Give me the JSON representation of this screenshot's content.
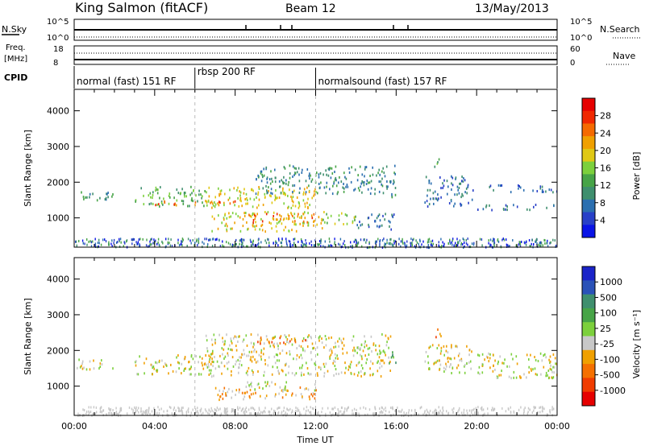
{
  "header": {
    "station": "King Salmon (fitACF)",
    "beam": "Beam 12",
    "date": "13/May/2013"
  },
  "top_panels": {
    "nsky_label": "N.Sky",
    "nsearch_label": "N.Search",
    "freq_label_line1": "Freq.",
    "freq_label_line2": "[MHz]",
    "nave_label": "Nave",
    "cpid_label": "CPID",
    "noise_ticks_left": [
      "10^5",
      "10^0"
    ],
    "noise_ticks_right": [
      "10^5",
      "10^0"
    ],
    "freq_ticks_left": [
      "18",
      "8"
    ],
    "nave_ticks_right": [
      "60",
      "0"
    ]
  },
  "cpid_segments": [
    {
      "label": "normal (fast) 151 RF",
      "start_h": 0,
      "end_h": 6
    },
    {
      "label": "rbsp 200 RF",
      "start_h": 6,
      "end_h": 12
    },
    {
      "label": "normalsound (fast) 157 RF",
      "start_h": 12,
      "end_h": 24
    }
  ],
  "colors": {
    "power": [
      "#0a14e6",
      "#2840c8",
      "#2b6fb0",
      "#3f8f6e",
      "#47a447",
      "#7cd03c",
      "#e0c814",
      "#f0a000",
      "#f56a00",
      "#f02800",
      "#e60000"
    ],
    "velocity": [
      "#1a23c8",
      "#2a52b8",
      "#3f8f6e",
      "#47a447",
      "#7cd03c",
      "#c8c8c8",
      "#f0a000",
      "#f57000",
      "#f03c00",
      "#e60000"
    ]
  },
  "chart_data": [
    {
      "type": "heatmap",
      "name": "power",
      "xlabel": "",
      "ylabel": "Slant Range [km]",
      "xlim": [
        0,
        24
      ],
      "ylim": [
        180,
        4600
      ],
      "yticks": [
        1000,
        2000,
        3000,
        4000
      ],
      "colorbar_label": "Power [dB]",
      "colorbar_ticks": [
        "4",
        "8",
        "12",
        "16",
        "20",
        "24",
        "28"
      ],
      "echo_regions": [
        {
          "t0": 0.0,
          "t1": 1.9,
          "r0": 1500,
          "r1": 1780,
          "level": 3
        },
        {
          "t0": 3.0,
          "t1": 6.5,
          "r0": 1350,
          "r1": 1900,
          "level": 4
        },
        {
          "t0": 4.0,
          "t1": 8.0,
          "r0": 1380,
          "r1": 1520,
          "level": 8
        },
        {
          "t0": 6.5,
          "t1": 12.0,
          "r0": 1300,
          "r1": 1900,
          "level": 6
        },
        {
          "t0": 9.0,
          "t1": 11.0,
          "r0": 1600,
          "r1": 1750,
          "level": 5
        },
        {
          "t0": 9.0,
          "t1": 15.7,
          "r0": 1700,
          "r1": 2500,
          "level": 3
        },
        {
          "t0": 6.8,
          "t1": 12.3,
          "r0": 650,
          "r1": 1200,
          "level": 6
        },
        {
          "t0": 8.5,
          "t1": 12.0,
          "r0": 900,
          "r1": 1150,
          "level": 8
        },
        {
          "t0": 12.3,
          "t1": 14.0,
          "r0": 850,
          "r1": 1200,
          "level": 5
        },
        {
          "t0": 14.0,
          "t1": 16.0,
          "r0": 700,
          "r1": 1150,
          "level": 2
        },
        {
          "t0": 15.5,
          "t1": 16.0,
          "r0": 1600,
          "r1": 2500,
          "level": 3
        },
        {
          "t0": 17.4,
          "t1": 19.8,
          "r0": 1350,
          "r1": 2200,
          "level": 2
        },
        {
          "t0": 17.8,
          "t1": 18.2,
          "r0": 2400,
          "r1": 2700,
          "level": 4
        },
        {
          "t0": 20.0,
          "t1": 24.0,
          "r0": 1250,
          "r1": 1400,
          "level": 2
        },
        {
          "t0": 20.5,
          "t1": 24.0,
          "r0": 1750,
          "r1": 1950,
          "level": 2
        }
      ]
    },
    {
      "type": "heatmap",
      "name": "velocity",
      "xlabel": "Time UT",
      "ylabel": "Slant Range [km]",
      "xlim": [
        0,
        24
      ],
      "ylim": [
        180,
        4600
      ],
      "yticks": [
        1000,
        2000,
        3000,
        4000
      ],
      "xticks": [
        "00:00",
        "04:00",
        "08:00",
        "12:00",
        "16:00",
        "20:00",
        "00:00"
      ],
      "colorbar_label": "Velocity [m s⁻¹]",
      "colorbar_ticks": [
        "-1000",
        "-500",
        "-100",
        "-25",
        "25",
        "100",
        "500",
        "1000"
      ],
      "echo_regions": [
        {
          "t0": 0.0,
          "t1": 1.9,
          "r0": 1500,
          "r1": 1780,
          "level": 5
        },
        {
          "t0": 3.0,
          "t1": 6.5,
          "r0": 1350,
          "r1": 1900,
          "level": 5
        },
        {
          "t0": 6.5,
          "t1": 15.7,
          "r0": 1300,
          "r1": 2500,
          "level": 5
        },
        {
          "t0": 7.0,
          "t1": 12.0,
          "r0": 650,
          "r1": 1000,
          "level": 6
        },
        {
          "t0": 8.5,
          "t1": 12.0,
          "r0": 900,
          "r1": 1150,
          "level": 5
        },
        {
          "t0": 9.0,
          "t1": 11.5,
          "r0": 2200,
          "r1": 2400,
          "level": 7
        },
        {
          "t0": 15.5,
          "t1": 16.0,
          "r0": 1600,
          "r1": 2000,
          "level": 3
        },
        {
          "t0": 17.8,
          "t1": 18.2,
          "r0": 2400,
          "r1": 2700,
          "level": 7
        },
        {
          "t0": 17.4,
          "t1": 19.8,
          "r0": 1350,
          "r1": 2200,
          "level": 5
        },
        {
          "t0": 20.0,
          "t1": 24.0,
          "r0": 1250,
          "r1": 1950,
          "level": 5
        }
      ]
    }
  ]
}
